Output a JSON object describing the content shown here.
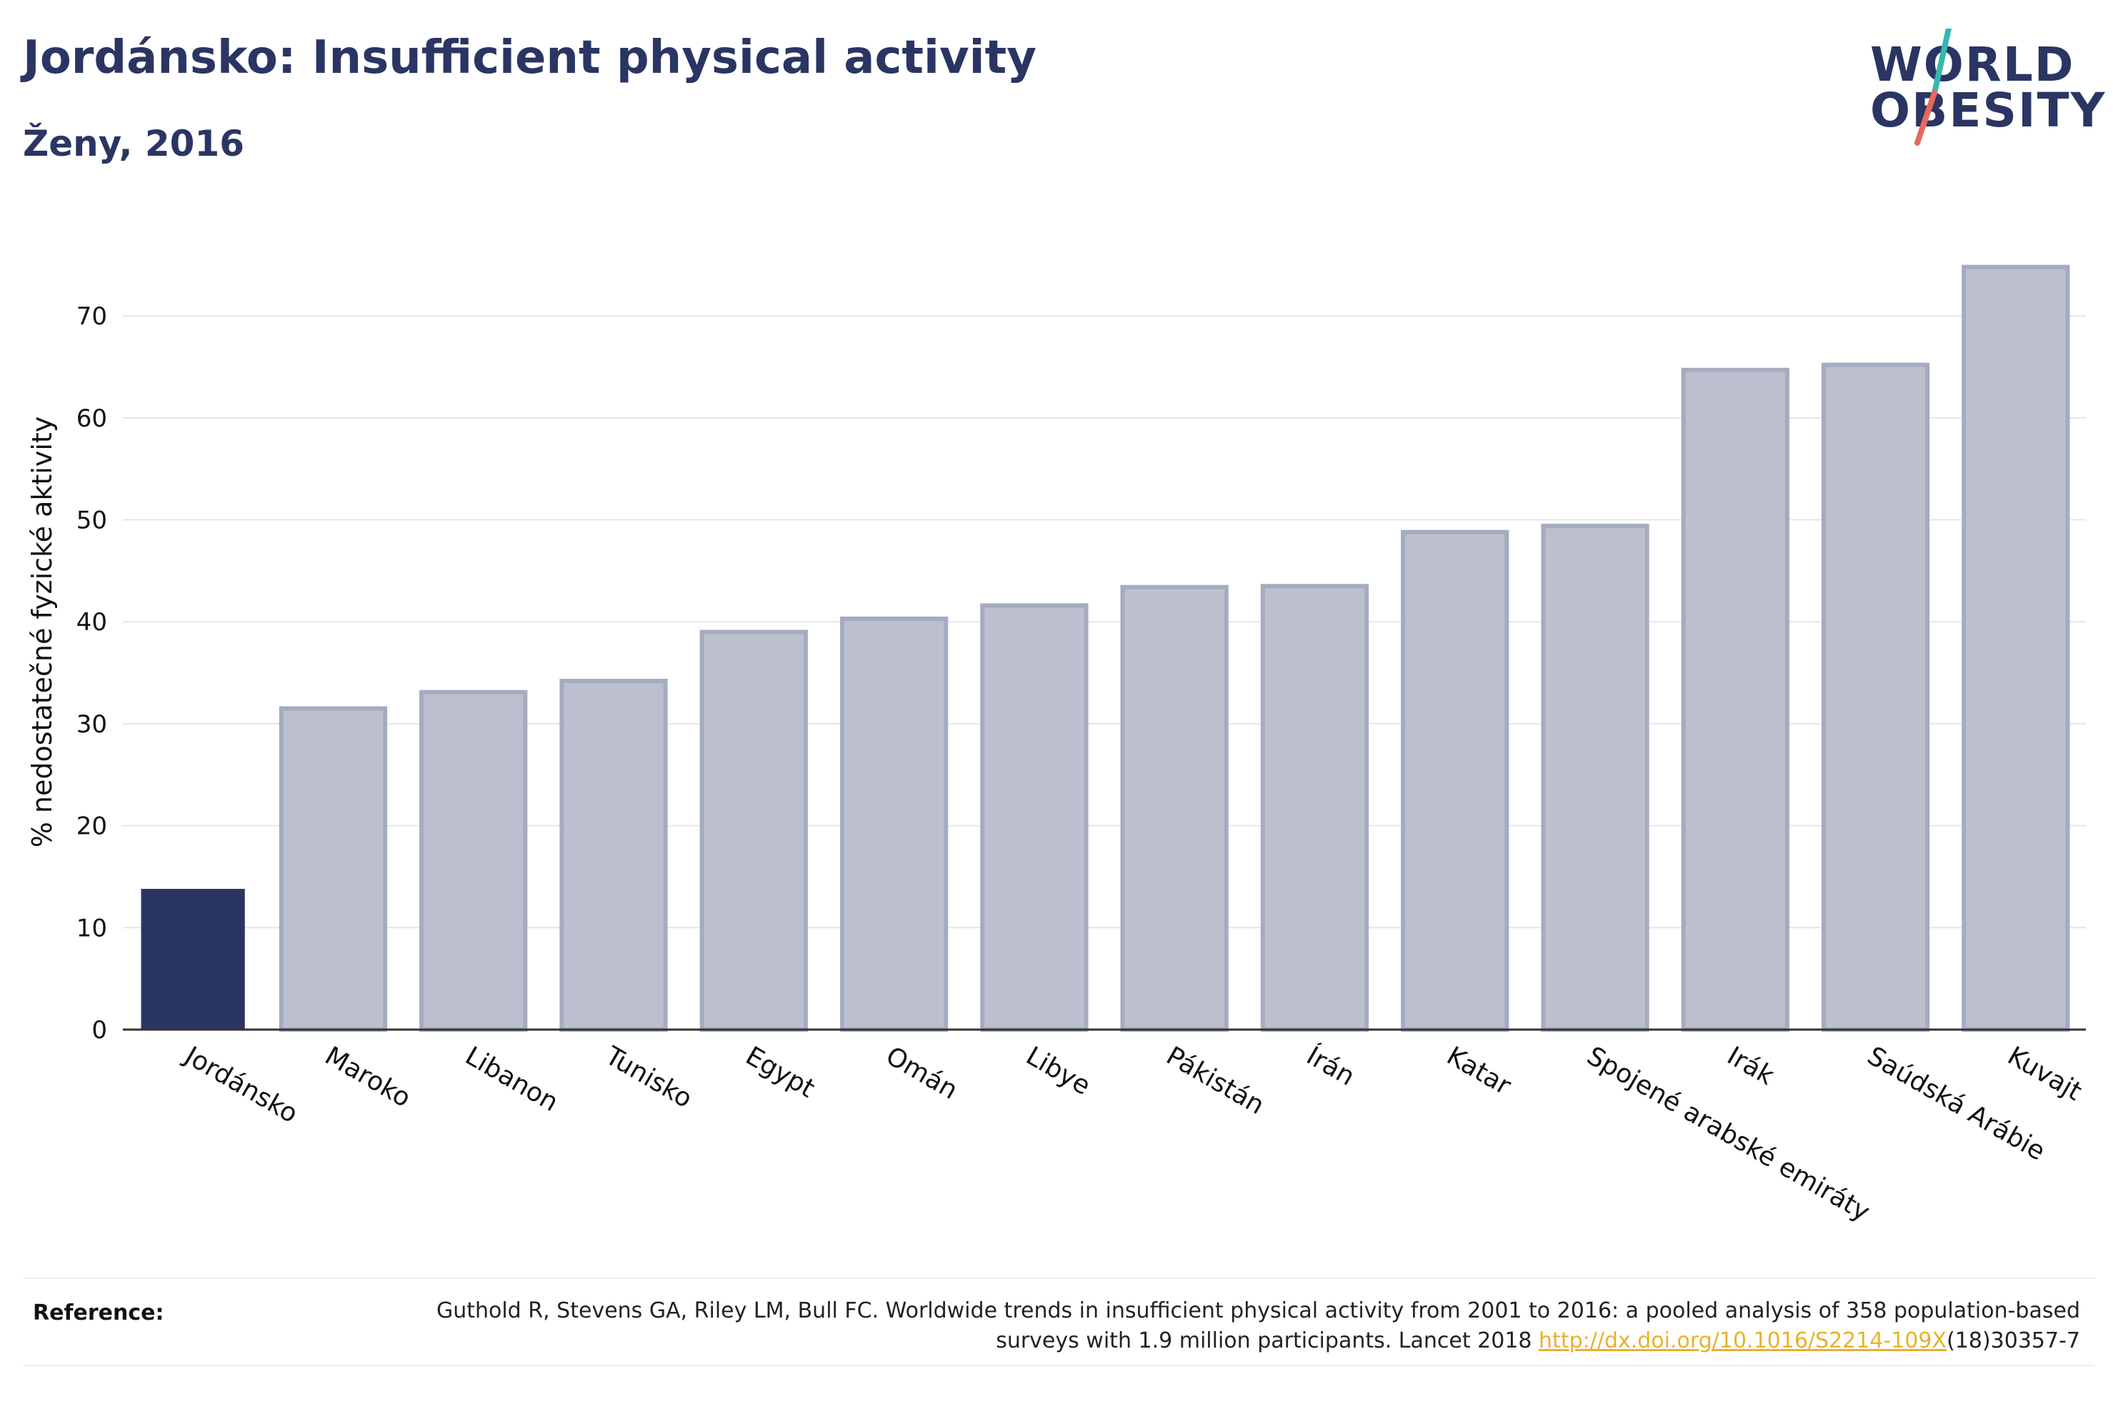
{
  "header": {
    "title": "Jordánsko: Insufficient physical activity",
    "subtitle": "Ženy, 2016"
  },
  "logo": {
    "line1": "WORLD",
    "line2": "OBESITY",
    "accent_teal": "#35b8b0",
    "accent_red": "#e8685a"
  },
  "colors": {
    "highlight_bar": "#2b3563",
    "other_bar_fill": "#bcc0ce",
    "other_bar_stroke": "#a5abc0",
    "gridline": "#e6e6e6",
    "axis_line": "#333333"
  },
  "chart_data": {
    "type": "bar",
    "title": "Jordánsko: Insufficient physical activity",
    "subtitle": "Ženy, 2016",
    "ylabel": "% nedostatečné fyzické aktivity",
    "xlabel": "",
    "ylim": [
      0,
      78
    ],
    "yticks": [
      0,
      10,
      20,
      30,
      40,
      50,
      60,
      70
    ],
    "grid": true,
    "highlight": "Jordánsko",
    "categories": [
      "Jordánsko",
      "Maroko",
      "Libanon",
      "Tunisko",
      "Egypt",
      "Omán",
      "Libye",
      "Pákistán",
      "Írán",
      "Katar",
      "Spojené arabské emiráty",
      "Irák",
      "Saúdská Arábie",
      "Kuvajt"
    ],
    "values": [
      13.8,
      31.5,
      33.1,
      34.2,
      39.0,
      40.3,
      41.6,
      43.4,
      43.5,
      48.8,
      49.4,
      64.7,
      65.2,
      74.8
    ]
  },
  "reference": {
    "label": "Reference:",
    "text_before": "Guthold R, Stevens GA, Riley LM, Bull FC. Worldwide trends in insufficient physical activity from 2001 to 2016: a pooled analysis of 358 population-based surveys with 1.9 million participants. Lancet 2018 ",
    "link": "http://dx.doi.org/10.1016/S2214-109X",
    "text_after": "(18)30357-7"
  }
}
